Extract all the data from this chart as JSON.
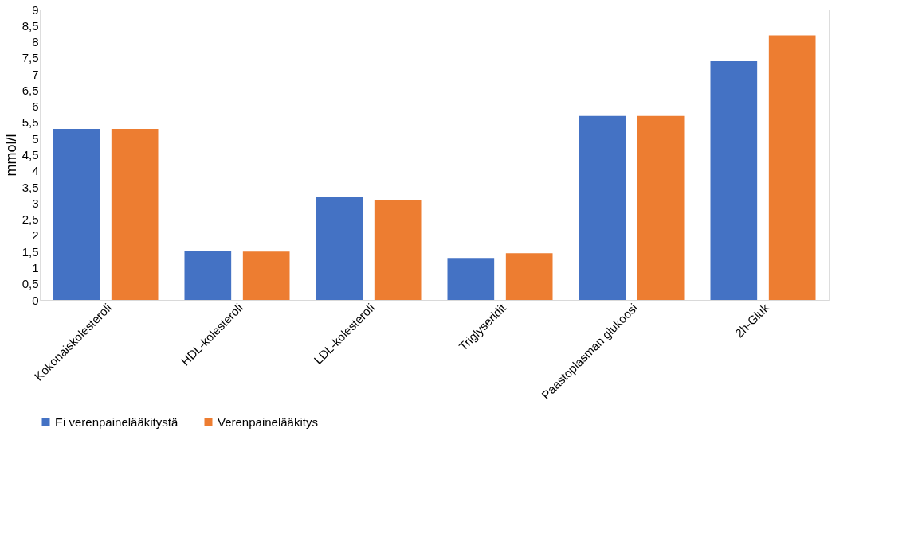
{
  "chart_data": {
    "type": "bar",
    "ylabel": "mmol/l",
    "categories": [
      "Kokonaiskolesteroli",
      "HDL-kolesteroli",
      "LDL-kolesteroli",
      "Triglyseridit",
      "Paastoplasman glukoosi",
      "2h-Gluk"
    ],
    "series": [
      {
        "name": "Ei verenpainelääkitystä",
        "color": "#4472c4",
        "values": [
          5.3,
          1.53,
          3.2,
          1.3,
          5.7,
          7.4
        ]
      },
      {
        "name": "Verenpainelääkitys",
        "color": "#ed7d31",
        "values": [
          5.3,
          1.5,
          3.1,
          1.45,
          5.7,
          8.2
        ]
      }
    ],
    "ylim": [
      0,
      9
    ],
    "yticks": [
      0,
      {
        "value": 0.5,
        "label": "0,5"
      },
      1,
      {
        "value": 1.5,
        "label": "1,5"
      },
      2,
      {
        "value": 2.5,
        "label": "2,5"
      },
      3,
      {
        "value": 3.5,
        "label": "3,5"
      },
      4,
      {
        "value": 4.5,
        "label": "4,5"
      },
      5,
      {
        "value": 5.5,
        "label": "5,5"
      },
      6,
      {
        "value": 6.5,
        "label": "6,5"
      },
      7,
      {
        "value": 7.5,
        "label": "7,5"
      },
      8,
      {
        "value": 8.5,
        "label": "8,5"
      },
      9
    ],
    "grid": false,
    "legend": "bottom"
  }
}
